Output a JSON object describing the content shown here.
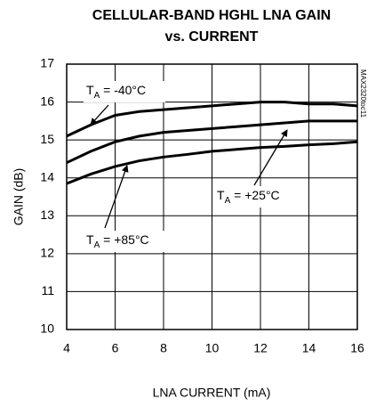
{
  "chart_data": {
    "type": "line",
    "title": [
      "CELLULAR-BAND HGHL LNA GAIN",
      "vs. CURRENT"
    ],
    "x_label": "LNA CURRENT (mA)",
    "y_label": "GAIN (dB)",
    "figure_id": "MAX2320toc11",
    "x": [
      4,
      5,
      6,
      7,
      8,
      9,
      10,
      11,
      12,
      13,
      14,
      15,
      16
    ],
    "series": [
      {
        "color": "#000000",
        "values": [
          15.1,
          15.4,
          15.65,
          15.75,
          15.8,
          15.85,
          15.9,
          15.95,
          16.0,
          16.0,
          15.95,
          15.95,
          15.9
        ]
      },
      {
        "color": "#000000",
        "values": [
          14.4,
          14.7,
          14.95,
          15.1,
          15.2,
          15.25,
          15.3,
          15.35,
          15.4,
          15.45,
          15.5,
          15.5,
          15.5
        ]
      },
      {
        "color": "#000000",
        "values": [
          13.85,
          14.1,
          14.3,
          14.45,
          14.55,
          14.62,
          14.7,
          14.75,
          14.8,
          14.83,
          14.87,
          14.9,
          14.95
        ]
      }
    ],
    "annotations": [
      {
        "text": "T",
        "subscript": "A",
        "suffix": " = -40°C"
      },
      {
        "text": "T",
        "subscript": "A",
        "suffix": " = +25°C"
      },
      {
        "text": "T",
        "subscript": "A",
        "suffix": " = +85°C"
      }
    ],
    "xlim": [
      4,
      16
    ],
    "ylim": [
      10,
      17
    ],
    "xticks": [
      4,
      6,
      8,
      10,
      12,
      14,
      16
    ],
    "yticks": [
      10,
      11,
      12,
      13,
      14,
      15,
      16,
      17
    ],
    "grid": true
  }
}
